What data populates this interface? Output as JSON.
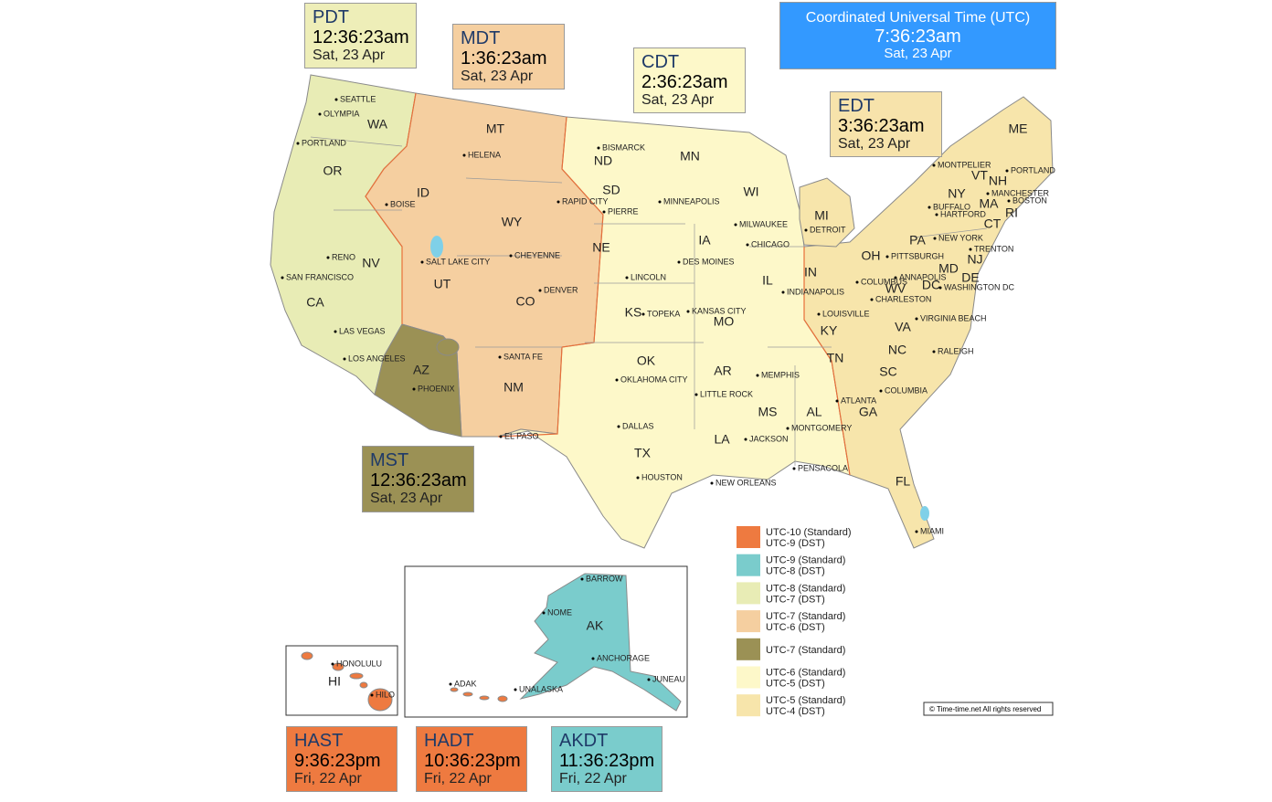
{
  "utc": {
    "name": "Coordinated Universal Time (UTC)",
    "time": "7:36:23am",
    "date": "Sat, 23 Apr",
    "color": "#3399ff"
  },
  "zones": [
    {
      "abbr": "PDT",
      "time": "12:36:23am",
      "date": "Sat, 23 Apr",
      "color": "#eeeeb8"
    },
    {
      "abbr": "MDT",
      "time": "1:36:23am",
      "date": "Sat, 23 Apr",
      "color": "#f5cfa0"
    },
    {
      "abbr": "CDT",
      "time": "2:36:23am",
      "date": "Sat, 23 Apr",
      "color": "#fdf8c9"
    },
    {
      "abbr": "EDT",
      "time": "3:36:23am",
      "date": "Sat, 23 Apr",
      "color": "#f7e3ab"
    },
    {
      "abbr": "MST",
      "time": "12:36:23am",
      "date": "Sat, 23 Apr",
      "color": "#9b9155"
    },
    {
      "abbr": "HAST",
      "time": "9:36:23pm",
      "date": "Fri, 22 Apr",
      "color": "#ee7a40"
    },
    {
      "abbr": "HADT",
      "time": "10:36:23pm",
      "date": "Fri, 22 Apr",
      "color": "#ee7a40"
    },
    {
      "abbr": "AKDT",
      "time": "11:36:23pm",
      "date": "Fri, 22 Apr",
      "color": "#7acccc"
    }
  ],
  "legend": [
    {
      "labels": [
        "UTC-10 (Standard)",
        "UTC-9 (DST)"
      ],
      "color": "#ee7a40"
    },
    {
      "labels": [
        "UTC-9 (Standard)",
        "UTC-8 (DST)"
      ],
      "color": "#7acccc"
    },
    {
      "labels": [
        "UTC-8 (Standard)",
        "UTC-7 (DST)"
      ],
      "color": "#e8ecb5"
    },
    {
      "labels": [
        "UTC-7 (Standard)",
        "UTC-6 (DST)"
      ],
      "color": "#f5cfa0"
    },
    {
      "labels": [
        "UTC-7 (Standard)"
      ],
      "color": "#9b9155"
    },
    {
      "labels": [
        "UTC-6 (Standard)",
        "UTC-5 (DST)"
      ],
      "color": "#fdf8c9"
    },
    {
      "labels": [
        "UTC-5 (Standard)",
        "UTC-4 (DST)"
      ],
      "color": "#f7e5ab"
    }
  ],
  "states": [
    "WA",
    "OR",
    "CA",
    "NV",
    "ID",
    "MT",
    "WY",
    "UT",
    "CO",
    "AZ",
    "NM",
    "ND",
    "SD",
    "NE",
    "KS",
    "OK",
    "TX",
    "MN",
    "IA",
    "MO",
    "AR",
    "LA",
    "WI",
    "IL",
    "MS",
    "MI",
    "IN",
    "KY",
    "TN",
    "AL",
    "OH",
    "GA",
    "FL",
    "WV",
    "VA",
    "NC",
    "SC",
    "PA",
    "NY",
    "MD",
    "DE",
    "NJ",
    "CT",
    "RI",
    "MA",
    "VT",
    "NH",
    "ME",
    "DC",
    "AK",
    "HI"
  ],
  "cities": [
    "SEATTLE",
    "OLYMPIA",
    "PORTLAND",
    "RENO",
    "SAN FRANCISCO",
    "LAS VEGAS",
    "LOS ANGELES",
    "BOISE",
    "HELENA",
    "SALT LAKE CITY",
    "CHEYENNE",
    "DENVER",
    "PHOENIX",
    "SANTA FE",
    "EL PASO",
    "BISMARCK",
    "RAPID CITY",
    "PIERRE",
    "LINCOLN",
    "TOPEKA",
    "OKLAHOMA CITY",
    "DALLAS",
    "HOUSTON",
    "MINNEAPOLIS",
    "DES MOINES",
    "KANSAS CITY",
    "LITTLE ROCK",
    "NEW ORLEANS",
    "JACKSON",
    "MEMPHIS",
    "MILWAUKEE",
    "CHICAGO",
    "DETROIT",
    "INDIANAPOLIS",
    "LOUISVILLE",
    "MONTGOMERY",
    "PENSACOLA",
    "ATLANTA",
    "COLUMBUS",
    "CHARLESTON",
    "COLUMBIA",
    "RALEIGH",
    "VIRGINIA BEACH",
    "PITTSBURGH",
    "ANNAPOLIS",
    "WASHINGTON DC",
    "BUFFALO",
    "HARTFORD",
    "NEW YORK",
    "TRENTON",
    "MANCHESTER",
    "BOSTON",
    "PORTLAND",
    "MONTPELIER",
    "MIAMI",
    "BARROW",
    "NOME",
    "ANCHORAGE",
    "JUNEAU",
    "UNALASKA",
    "ADAK",
    "HONOLULU",
    "HILO"
  ],
  "copyright": "© Time-time.net   All rights reserved"
}
